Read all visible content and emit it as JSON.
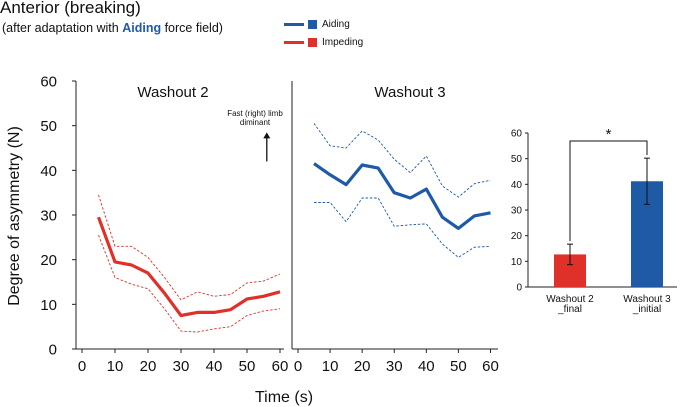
{
  "header": {
    "title": "Anterior (breaking)",
    "subtitle_pre": "(after adaptation with ",
    "subtitle_em": "Aiding",
    "subtitle_post": " force field)"
  },
  "legend": [
    {
      "label": "Aiding",
      "color": "#1f5aa6"
    },
    {
      "label": "Impeding",
      "color": "#e0302a"
    }
  ],
  "chart_data": [
    {
      "type": "line",
      "title": "Washout 2",
      "xlabel": "Time (s)",
      "ylabel": "Degree of asymmetry (N)",
      "xlim": [
        0,
        60
      ],
      "ylim": [
        0,
        60
      ],
      "xticks": [
        0,
        10,
        20,
        30,
        40,
        50,
        60
      ],
      "yticks": [
        0,
        10,
        20,
        30,
        40,
        50,
        60
      ],
      "annotation": [
        "Fast (right) limb",
        "diminant"
      ],
      "annotation_arrow": {
        "x": 56,
        "y_from": 42,
        "y_to": 48.5
      },
      "color": "#e0302a",
      "series": [
        {
          "role": "mean",
          "x": [
            5,
            10,
            15,
            20,
            25,
            30,
            35,
            40,
            45,
            50,
            55,
            60
          ],
          "y": [
            29.5,
            19.5,
            18.8,
            17.0,
            12.5,
            7.5,
            8.2,
            8.2,
            8.8,
            11.2,
            11.8,
            12.8
          ]
        },
        {
          "role": "upper",
          "x": [
            5,
            10,
            15,
            20,
            25,
            30,
            35,
            40,
            45,
            50,
            55,
            60
          ],
          "y": [
            34.5,
            23.0,
            23.0,
            20.5,
            16.0,
            11.0,
            12.8,
            11.8,
            12.2,
            14.8,
            15.2,
            16.8
          ]
        },
        {
          "role": "lower",
          "x": [
            5,
            10,
            15,
            20,
            25,
            30,
            35,
            40,
            45,
            50,
            55,
            60
          ],
          "y": [
            25.5,
            16.0,
            14.5,
            13.5,
            9.0,
            4.0,
            3.8,
            4.5,
            5.0,
            7.5,
            8.5,
            9.0
          ]
        }
      ]
    },
    {
      "type": "line",
      "title": "Washout 3",
      "xlim": [
        0,
        60
      ],
      "ylim": [
        0,
        60
      ],
      "xticks": [
        0,
        10,
        20,
        30,
        40,
        50,
        60
      ],
      "color": "#1f5aa6",
      "series": [
        {
          "role": "mean",
          "x": [
            5,
            10,
            15,
            20,
            25,
            30,
            35,
            40,
            45,
            50,
            55,
            60
          ],
          "y": [
            41.5,
            39.0,
            36.8,
            41.2,
            40.5,
            35.0,
            33.8,
            35.8,
            29.5,
            27.0,
            29.8,
            30.5
          ]
        },
        {
          "role": "upper",
          "x": [
            5,
            10,
            15,
            20,
            25,
            30,
            35,
            40,
            45,
            50,
            55,
            60
          ],
          "y": [
            50.5,
            45.5,
            45.0,
            48.8,
            46.8,
            42.5,
            39.5,
            43.2,
            36.5,
            34.0,
            37.0,
            37.8
          ]
        },
        {
          "role": "lower",
          "x": [
            5,
            10,
            15,
            20,
            25,
            30,
            35,
            40,
            45,
            50,
            55,
            60
          ],
          "y": [
            32.8,
            32.8,
            28.5,
            33.8,
            33.8,
            27.5,
            27.8,
            28.0,
            23.5,
            20.5,
            22.8,
            23.0
          ]
        }
      ]
    },
    {
      "type": "bar",
      "categories": [
        [
          "Washout 2",
          "_final"
        ],
        [
          "Washout 3",
          "_initial"
        ]
      ],
      "values": [
        12.7,
        41.2
      ],
      "errors": [
        4.0,
        9.0
      ],
      "colors": [
        "#e0302a",
        "#1f5aa6"
      ],
      "ylim": [
        0,
        60
      ],
      "yticks": [
        0,
        10,
        20,
        30,
        40,
        50,
        60
      ],
      "significance": "*"
    }
  ]
}
